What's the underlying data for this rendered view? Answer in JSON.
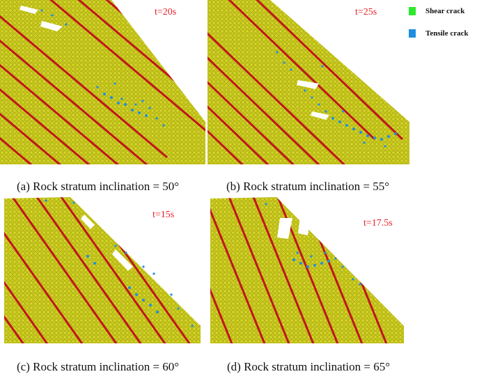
{
  "legend": {
    "items": [
      {
        "label": "Shear crack",
        "color": "#2ee82e"
      },
      {
        "label": "Tensile crack",
        "color": "#1e8fe0"
      }
    ]
  },
  "colors": {
    "particle": "#c8c81e",
    "particle_edge": "#9a9a10",
    "joint": "#c0161a",
    "time_label": "#e8202a"
  },
  "panels": [
    {
      "time": "t=20s",
      "caption": "(a) Rock stratum inclination = 50°"
    },
    {
      "time": "t=25s",
      "caption": "(b) Rock stratum inclination = 55°"
    },
    {
      "time": "t=15s",
      "caption": "(c) Rock stratum inclination = 60°"
    },
    {
      "time": "t=17.5s",
      "caption": "(d) Rock stratum inclination = 65°"
    }
  ]
}
